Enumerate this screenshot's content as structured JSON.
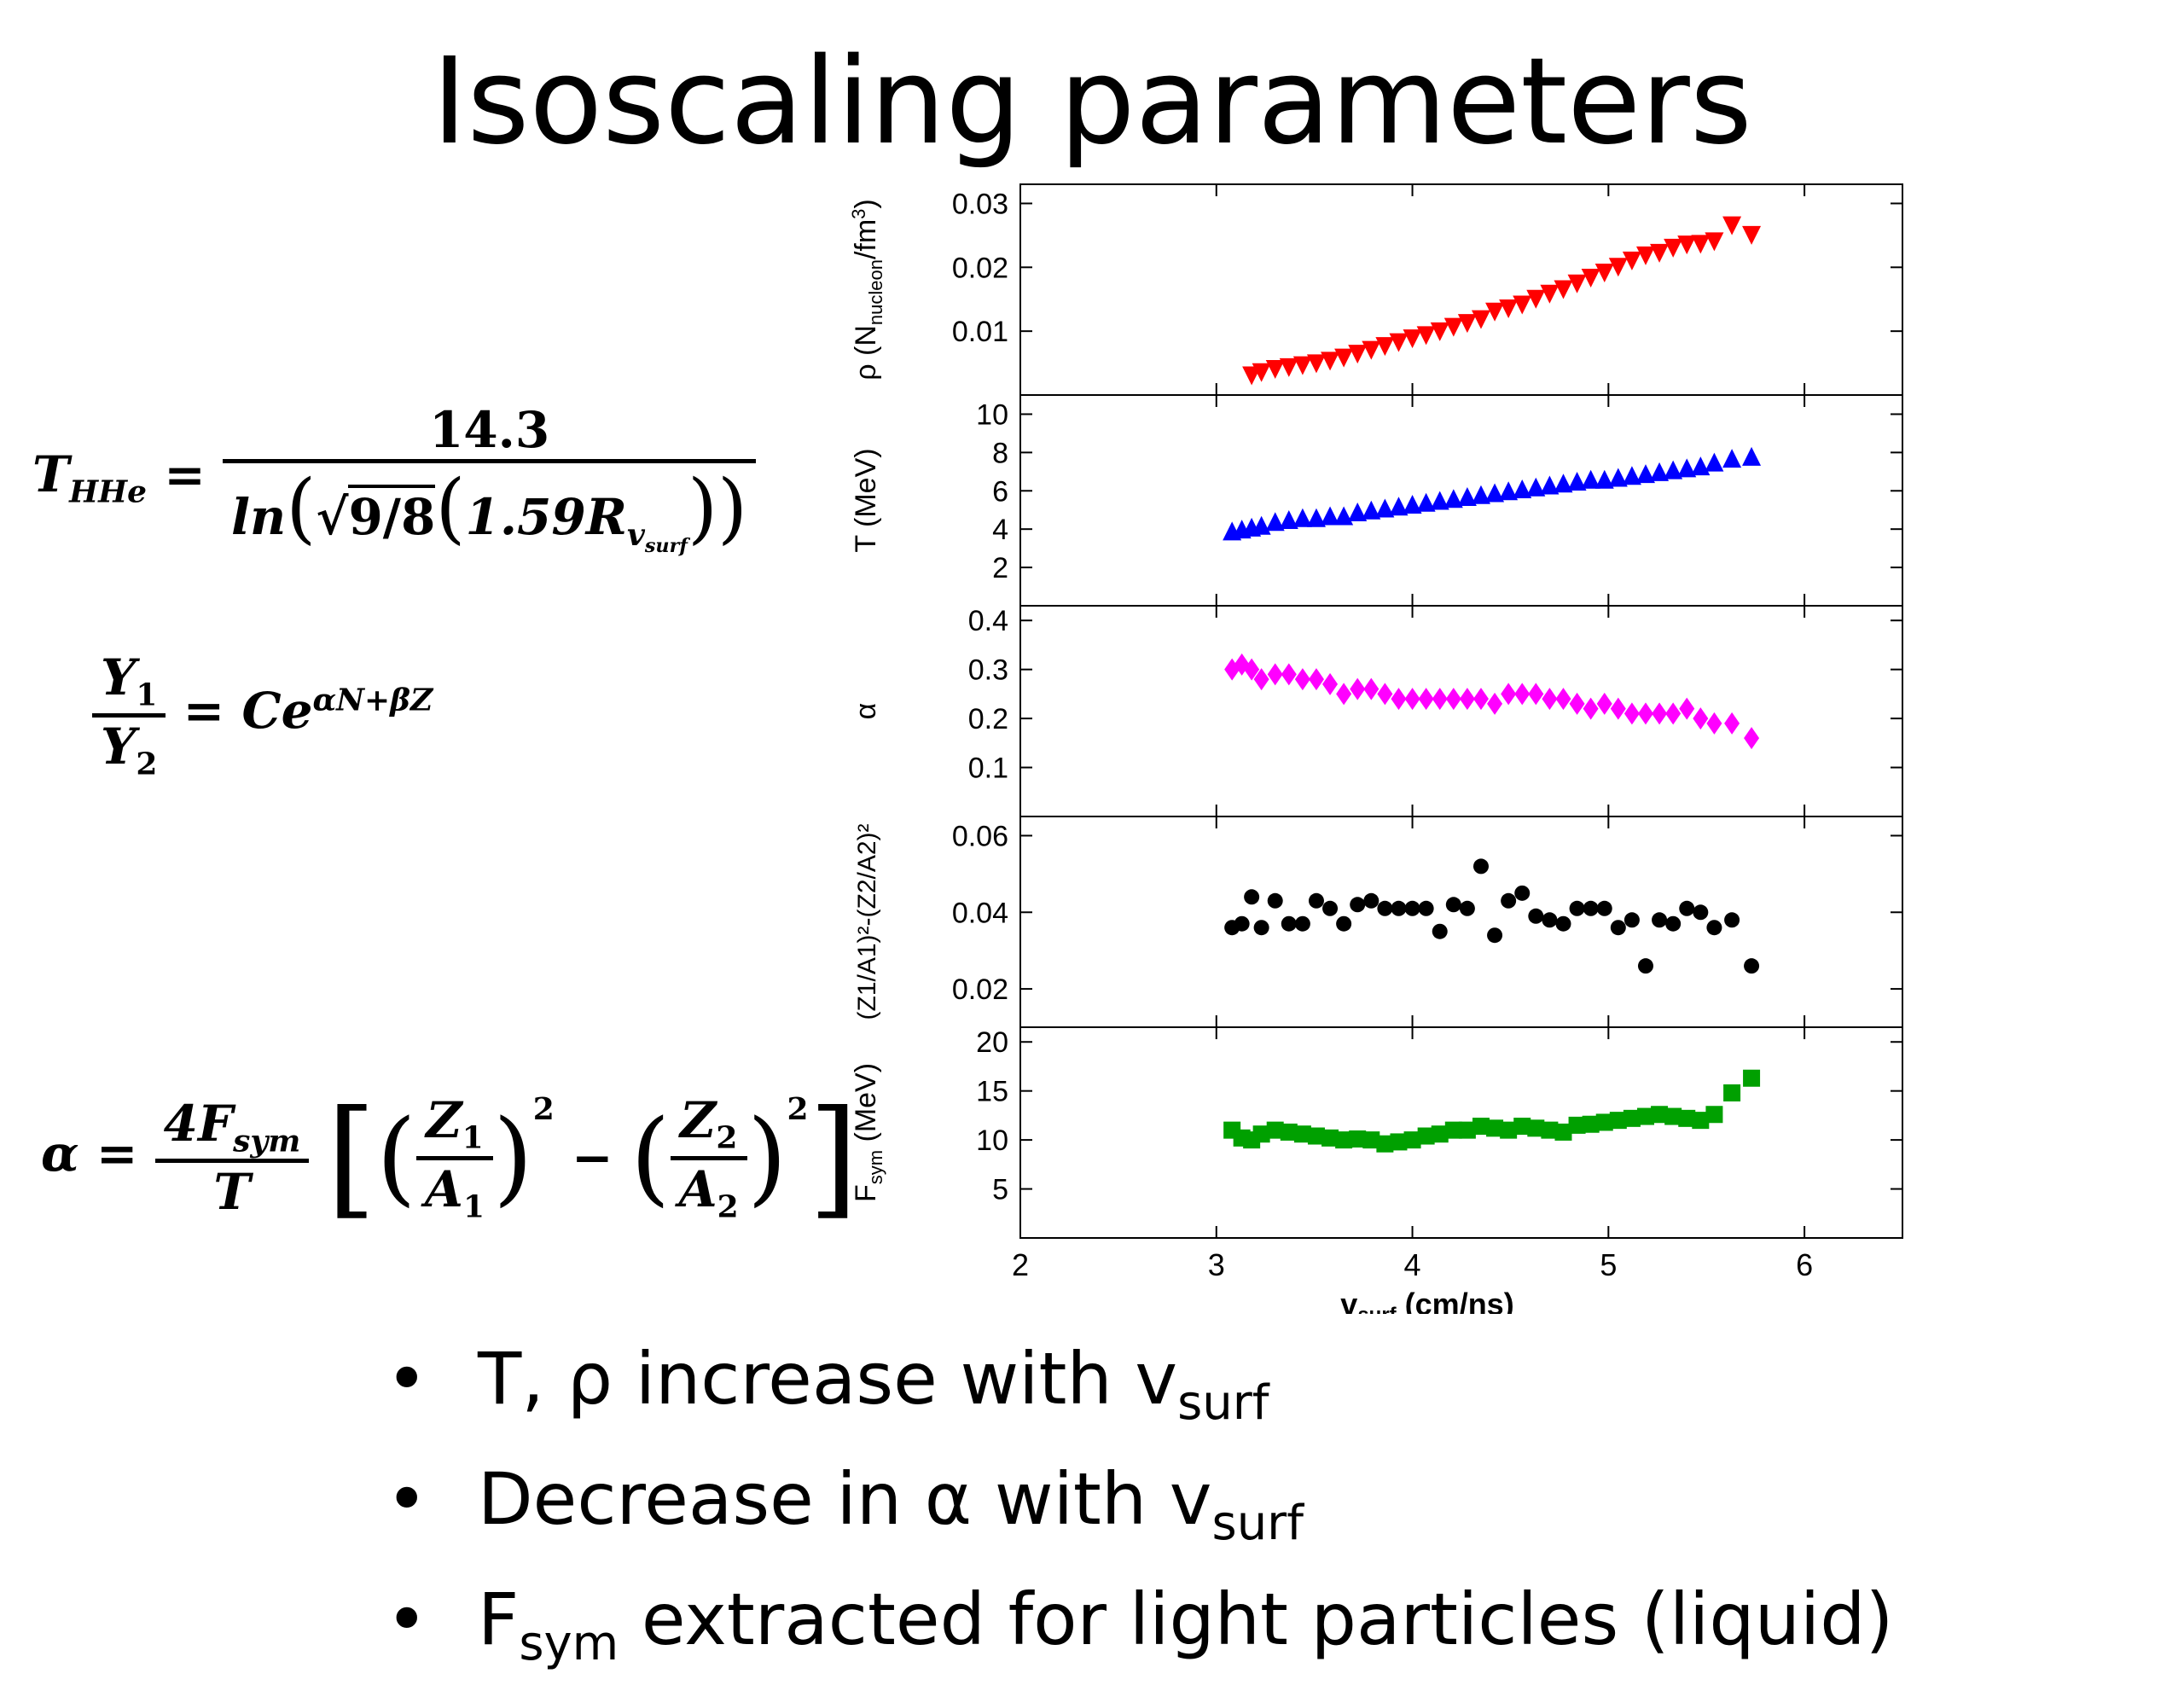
{
  "title": "Isoscaling parameters",
  "equations": {
    "thhe": {
      "lhs": "T",
      "lhs_sub": "HHe",
      "numerator": "14.3",
      "ln": "ln",
      "sqrt": "9/8",
      "coef": "1.59R",
      "coef_sub": "v",
      "coef_subsub": "surf"
    },
    "ratio": {
      "y1": "Y",
      "y1_sub": "1",
      "y2": "Y",
      "y2_sub": "2",
      "rhs": "Ce",
      "rhs_sup": "αN+βZ"
    },
    "alpha": {
      "lhs": "α",
      "num": "4F",
      "num_sub": "sym",
      "den": "T",
      "z1": "Z",
      "z1_sub": "1",
      "a1": "A",
      "a1_sub": "1",
      "z2": "Z",
      "z2_sub": "2",
      "a2": "A",
      "a2_sub": "2",
      "power": "2"
    }
  },
  "bullets": [
    {
      "text": "T, ρ increase with v",
      "sub": "surf",
      "tail": ""
    },
    {
      "text": "Decrease in α with v",
      "sub": "surf",
      "tail": ""
    },
    {
      "text": "F",
      "sub": "sym",
      "tail": " extracted for light particles (liquid)"
    }
  ],
  "chart_data": {
    "type": "scatter",
    "x_label": "v",
    "x_label_sub": "surf",
    "x_label_tail": " (cm/ns)",
    "xlim": [
      2,
      6.5
    ],
    "x_ticks": [
      "2",
      "3",
      "4",
      "5",
      "6"
    ],
    "x_values": [
      3.08,
      3.13,
      3.18,
      3.23,
      3.3,
      3.37,
      3.44,
      3.51,
      3.58,
      3.65,
      3.72,
      3.79,
      3.86,
      3.93,
      4.0,
      4.07,
      4.14,
      4.21,
      4.28,
      4.35,
      4.42,
      4.49,
      4.56,
      4.63,
      4.7,
      4.77,
      4.84,
      4.91,
      4.98,
      5.05,
      5.12,
      5.19,
      5.26,
      5.33,
      5.4,
      5.47,
      5.54,
      5.63,
      5.73
    ],
    "panels": [
      {
        "name": "rho",
        "ylabel": "ρ (N",
        "ylabel_sub": "nucleon",
        "ylabel_tail": "/fm",
        "ylabel_sup": "3",
        "ylabel_end": ")",
        "marker": "triangle-down",
        "color": "#ff0000",
        "ylim": [
          0,
          0.033
        ],
        "y_ticks": [
          "0.01",
          "0.02",
          "0.03"
        ],
        "y_tick_values": [
          0.01,
          0.02,
          0.03
        ],
        "x": [
          3.18,
          3.23,
          3.3,
          3.37,
          3.44,
          3.51,
          3.58,
          3.65,
          3.72,
          3.79,
          3.86,
          3.93,
          4.0,
          4.07,
          4.14,
          4.21,
          4.28,
          4.35,
          4.42,
          4.49,
          4.56,
          4.63,
          4.7,
          4.77,
          4.84,
          4.91,
          4.98,
          5.05,
          5.12,
          5.19,
          5.26,
          5.33,
          5.4,
          5.47,
          5.54,
          5.63,
          5.73
        ],
        "values": [
          0.003,
          0.0035,
          0.004,
          0.0043,
          0.0046,
          0.0049,
          0.0053,
          0.0058,
          0.0064,
          0.007,
          0.0076,
          0.0082,
          0.0088,
          0.0093,
          0.0099,
          0.0106,
          0.0112,
          0.0118,
          0.013,
          0.0135,
          0.0141,
          0.015,
          0.0158,
          0.0165,
          0.0174,
          0.0183,
          0.0191,
          0.02,
          0.021,
          0.0218,
          0.0222,
          0.023,
          0.0235,
          0.0236,
          0.024,
          0.0265,
          0.025
        ]
      },
      {
        "name": "temperature",
        "ylabel": "T (MeV)",
        "marker": "triangle-up",
        "color": "#0000ff",
        "ylim": [
          0,
          11
        ],
        "y_ticks": [
          "2",
          "4",
          "6",
          "8",
          "10"
        ],
        "y_tick_values": [
          2,
          4,
          6,
          8,
          10
        ],
        "x": [
          3.08,
          3.13,
          3.18,
          3.23,
          3.3,
          3.37,
          3.44,
          3.51,
          3.58,
          3.65,
          3.72,
          3.79,
          3.86,
          3.93,
          4.0,
          4.07,
          4.14,
          4.21,
          4.28,
          4.35,
          4.42,
          4.49,
          4.56,
          4.63,
          4.7,
          4.77,
          4.84,
          4.91,
          4.98,
          5.05,
          5.12,
          5.19,
          5.26,
          5.33,
          5.4,
          5.47,
          5.54,
          5.63,
          5.73
        ],
        "values": [
          3.9,
          4.0,
          4.1,
          4.2,
          4.4,
          4.5,
          4.6,
          4.6,
          4.7,
          4.7,
          4.9,
          5.0,
          5.1,
          5.2,
          5.3,
          5.4,
          5.5,
          5.6,
          5.7,
          5.8,
          5.9,
          6.0,
          6.1,
          6.2,
          6.3,
          6.4,
          6.5,
          6.6,
          6.6,
          6.7,
          6.8,
          6.9,
          7.0,
          7.1,
          7.2,
          7.3,
          7.5,
          7.7,
          7.8
        ]
      },
      {
        "name": "alpha",
        "ylabel": "α",
        "marker": "diamond",
        "color": "#ff00ff",
        "ylim": [
          0.0,
          0.43
        ],
        "y_ticks": [
          "0.1",
          "0.2",
          "0.3",
          "0.4"
        ],
        "y_tick_values": [
          0.1,
          0.2,
          0.3,
          0.4
        ],
        "x": [
          3.08,
          3.13,
          3.18,
          3.23,
          3.3,
          3.37,
          3.44,
          3.51,
          3.58,
          3.65,
          3.72,
          3.79,
          3.86,
          3.93,
          4.0,
          4.07,
          4.14,
          4.21,
          4.28,
          4.35,
          4.42,
          4.49,
          4.56,
          4.63,
          4.7,
          4.77,
          4.84,
          4.91,
          4.98,
          5.05,
          5.12,
          5.19,
          5.26,
          5.33,
          5.4,
          5.47,
          5.54,
          5.63,
          5.73
        ],
        "values": [
          0.3,
          0.31,
          0.3,
          0.28,
          0.29,
          0.29,
          0.28,
          0.28,
          0.27,
          0.25,
          0.26,
          0.26,
          0.25,
          0.24,
          0.24,
          0.24,
          0.24,
          0.24,
          0.24,
          0.24,
          0.23,
          0.25,
          0.25,
          0.25,
          0.24,
          0.24,
          0.23,
          0.22,
          0.23,
          0.22,
          0.21,
          0.21,
          0.21,
          0.21,
          0.22,
          0.2,
          0.19,
          0.19,
          0.16
        ]
      },
      {
        "name": "isospin",
        "ylabel": "(Z1/A1)²-(Z2/A2)²",
        "marker": "circle",
        "color": "#000000",
        "ylim": [
          0.01,
          0.065
        ],
        "y_ticks": [
          "0.02",
          "0.04",
          "0.06"
        ],
        "y_tick_values": [
          0.02,
          0.04,
          0.06
        ],
        "x": [
          3.08,
          3.13,
          3.18,
          3.23,
          3.3,
          3.37,
          3.44,
          3.51,
          3.58,
          3.65,
          3.72,
          3.79,
          3.86,
          3.93,
          4.0,
          4.07,
          4.14,
          4.21,
          4.28,
          4.35,
          4.42,
          4.49,
          4.56,
          4.63,
          4.7,
          4.77,
          4.84,
          4.91,
          4.98,
          5.05,
          5.12,
          5.19,
          5.26,
          5.33,
          5.4,
          5.47,
          5.54,
          5.63,
          5.73
        ],
        "values": [
          0.036,
          0.037,
          0.044,
          0.036,
          0.043,
          0.037,
          0.037,
          0.043,
          0.041,
          0.037,
          0.042,
          0.043,
          0.041,
          0.041,
          0.041,
          0.041,
          0.035,
          0.042,
          0.041,
          0.052,
          0.034,
          0.043,
          0.045,
          0.039,
          0.038,
          0.037,
          0.041,
          0.041,
          0.041,
          0.036,
          0.038,
          0.026,
          0.038,
          0.037,
          0.041,
          0.04,
          0.036,
          0.038,
          0.026
        ]
      },
      {
        "name": "fsym",
        "ylabel": "F",
        "ylabel_sub": "sym",
        "ylabel_tail": " (MeV)",
        "marker": "square",
        "color": "#00a000",
        "ylim": [
          0,
          21.5
        ],
        "y_ticks": [
          "5",
          "10",
          "15",
          "20"
        ],
        "y_tick_values": [
          5,
          10,
          15,
          20
        ],
        "x": [
          3.08,
          3.13,
          3.18,
          3.23,
          3.3,
          3.37,
          3.44,
          3.51,
          3.58,
          3.65,
          3.72,
          3.79,
          3.86,
          3.93,
          4.0,
          4.07,
          4.14,
          4.21,
          4.28,
          4.35,
          4.42,
          4.49,
          4.56,
          4.63,
          4.7,
          4.77,
          4.84,
          4.91,
          4.98,
          5.05,
          5.12,
          5.19,
          5.26,
          5.33,
          5.4,
          5.47,
          5.54,
          5.63,
          5.73
        ],
        "values": [
          11.0,
          10.2,
          10.0,
          10.6,
          11.0,
          10.8,
          10.6,
          10.4,
          10.2,
          10.0,
          10.1,
          10.0,
          9.6,
          9.8,
          10.0,
          10.4,
          10.6,
          11.0,
          11.0,
          11.4,
          11.2,
          11.0,
          11.4,
          11.2,
          11.0,
          10.8,
          11.5,
          11.6,
          11.8,
          12.0,
          12.2,
          12.4,
          12.6,
          12.4,
          12.2,
          12.0,
          12.6,
          14.8,
          16.3
        ]
      }
    ]
  }
}
